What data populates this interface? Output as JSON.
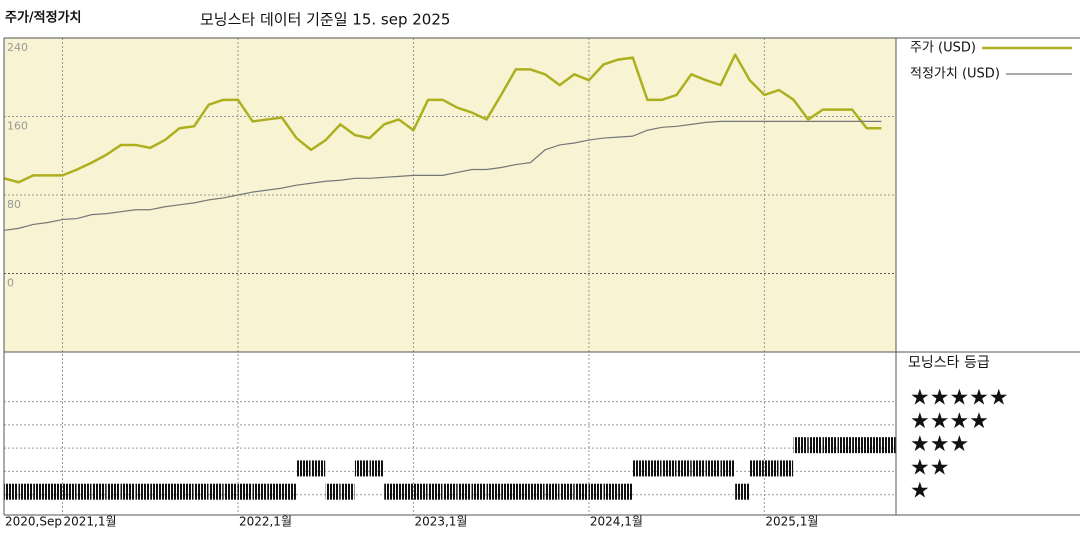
{
  "chart_data": [
    {
      "type": "line",
      "title": "주가/적정가치",
      "subtitle": "모닝스타 데이터 기준일 15. sep 2025",
      "x": [
        "2020-09",
        "2020-10",
        "2020-11",
        "2020-12",
        "2021-01",
        "2021-02",
        "2021-03",
        "2021-04",
        "2021-05",
        "2021-06",
        "2021-07",
        "2021-08",
        "2021-09",
        "2021-10",
        "2021-11",
        "2021-12",
        "2022-01",
        "2022-02",
        "2022-03",
        "2022-04",
        "2022-05",
        "2022-06",
        "2022-07",
        "2022-08",
        "2022-09",
        "2022-10",
        "2022-11",
        "2022-12",
        "2023-01",
        "2023-02",
        "2023-03",
        "2023-04",
        "2023-05",
        "2023-06",
        "2023-07",
        "2023-08",
        "2023-09",
        "2023-10",
        "2023-11",
        "2023-12",
        "2024-01",
        "2024-02",
        "2024-03",
        "2024-04",
        "2024-05",
        "2024-06",
        "2024-07",
        "2024-08",
        "2024-09",
        "2024-10",
        "2024-11",
        "2024-12",
        "2025-01",
        "2025-02",
        "2025-03",
        "2025-04",
        "2025-05",
        "2025-06",
        "2025-07",
        "2025-08",
        "2025-09"
      ],
      "series": [
        {
          "name": "주가 (USD)",
          "color": "#adaf1f",
          "values": [
            97,
            93,
            100,
            100,
            100,
            106,
            113,
            121,
            131,
            131,
            128,
            136,
            148,
            150,
            172,
            177,
            177,
            155,
            157,
            159,
            138,
            126,
            136,
            152,
            141,
            138,
            152,
            157,
            146,
            177,
            177,
            169,
            164,
            157,
            182,
            208,
            208,
            203,
            192,
            203,
            197,
            213,
            218,
            220,
            177,
            177,
            182,
            203,
            197,
            192,
            223,
            197,
            182,
            187,
            177,
            157,
            167,
            167,
            167,
            148,
            148
          ]
        },
        {
          "name": "적정가치 (USD)",
          "color": "#777777",
          "values": [
            44,
            46,
            50,
            52,
            55,
            56,
            60,
            61,
            63,
            65,
            65,
            68,
            70,
            72,
            75,
            77,
            80,
            83,
            85,
            87,
            90,
            92,
            94,
            95,
            97,
            97,
            98,
            99,
            100,
            100,
            100,
            103,
            106,
            106,
            108,
            111,
            113,
            126,
            131,
            133,
            136,
            138,
            139,
            140,
            146,
            149,
            150,
            152,
            154,
            155,
            155,
            155,
            155,
            155,
            155,
            155,
            155,
            155,
            155,
            155,
            155
          ]
        }
      ],
      "xlim": [
        "2020-09",
        "2025-10"
      ],
      "xticks": [
        {
          "value": "2020-09",
          "label": "2020,Sep"
        },
        {
          "value": "2021-01",
          "label": "2021,1월"
        },
        {
          "value": "2022-01",
          "label": "2022,1월"
        },
        {
          "value": "2023-01",
          "label": "2023,1월"
        },
        {
          "value": "2024-01",
          "label": "2024,1월"
        },
        {
          "value": "2025-01",
          "label": "2025,1월"
        }
      ],
      "ylim": [
        -80,
        240
      ],
      "yticks": [
        0,
        80,
        160,
        240
      ],
      "grid": true,
      "background": "#f8f4d3"
    },
    {
      "type": "rating",
      "title": "모닝스타 등급",
      "color": "#111111",
      "x": [
        "2020-09",
        "2020-10",
        "2020-11",
        "2020-12",
        "2021-01",
        "2021-02",
        "2021-03",
        "2021-04",
        "2021-05",
        "2021-06",
        "2021-07",
        "2021-08",
        "2021-09",
        "2021-10",
        "2021-11",
        "2021-12",
        "2022-01",
        "2022-02",
        "2022-03",
        "2022-04",
        "2022-05",
        "2022-06",
        "2022-07",
        "2022-08",
        "2022-09",
        "2022-10",
        "2022-11",
        "2022-12",
        "2023-01",
        "2023-02",
        "2023-03",
        "2023-04",
        "2023-05",
        "2023-06",
        "2023-07",
        "2023-08",
        "2023-09",
        "2023-10",
        "2023-11",
        "2023-12",
        "2024-01",
        "2024-02",
        "2024-03",
        "2024-04",
        "2024-05",
        "2024-06",
        "2024-07",
        "2024-08",
        "2024-09",
        "2024-10",
        "2024-11",
        "2024-12",
        "2025-01",
        "2025-02",
        "2025-03",
        "2025-04",
        "2025-05",
        "2025-06",
        "2025-07",
        "2025-08",
        "2025-09"
      ],
      "values": [
        1,
        1,
        1,
        1,
        1,
        1,
        1,
        1,
        1,
        1,
        1,
        1,
        1,
        1,
        1,
        1,
        1,
        1,
        1,
        1,
        2,
        2,
        1,
        1,
        2,
        2,
        1,
        1,
        1,
        1,
        1,
        1,
        1,
        1,
        1,
        1,
        1,
        1,
        1,
        1,
        1,
        1,
        1,
        2,
        2,
        2,
        2,
        2,
        2,
        2,
        1,
        2,
        2,
        2,
        3,
        3,
        3,
        3,
        3,
        3,
        3
      ],
      "xlim": [
        "2020-09",
        "2025-10"
      ],
      "ylim": [
        0,
        7
      ],
      "yticks": [
        {
          "value": 5,
          "label": "★★★★★"
        },
        {
          "value": 4,
          "label": "★★★★"
        },
        {
          "value": 3,
          "label": "★★★"
        },
        {
          "value": 2,
          "label": "★★"
        },
        {
          "value": 1,
          "label": "★"
        }
      ]
    }
  ]
}
